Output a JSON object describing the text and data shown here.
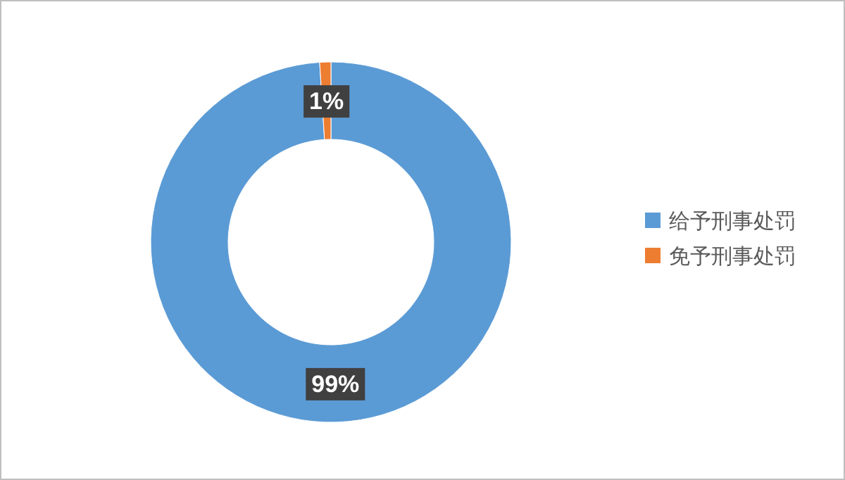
{
  "chart_data": {
    "type": "donut",
    "categories": [
      "给予刑事处罚",
      "免予刑事处罚"
    ],
    "values": [
      99,
      1
    ],
    "colors": [
      "#5b9bd5",
      "#ed7d31"
    ],
    "value_labels": [
      "99%",
      "1%"
    ],
    "legend": "right"
  }
}
